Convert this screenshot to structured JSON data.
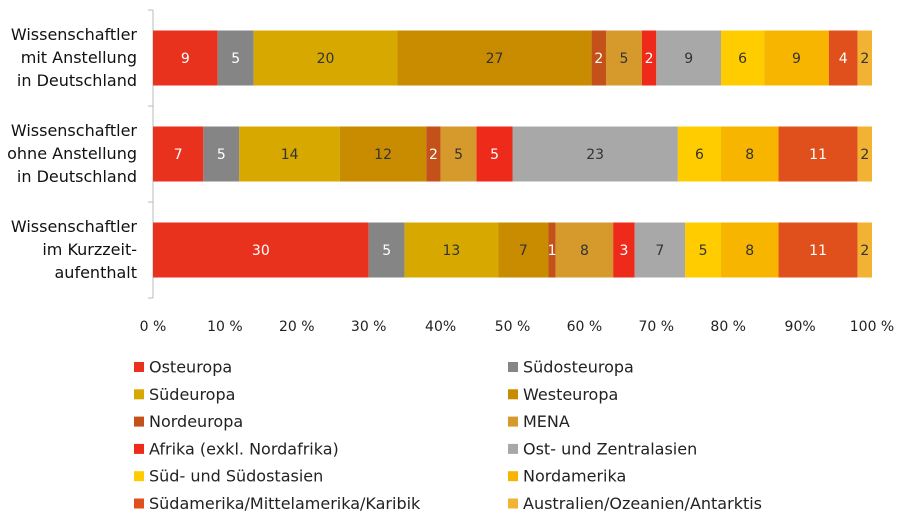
{
  "chart_data": {
    "type": "stacked_barh",
    "categories": [
      "Wissenschaftler\nmit Anstellung\nin Deutschland",
      "Wissenschaftler\nohne Anstellung\nin Deutschland",
      "Wissenschaftler\nim Kurzzeit-\naufenthalt"
    ],
    "series": [
      {
        "name": "Osteuropa",
        "color": "#e8321e",
        "label_color": "#ffffff",
        "values": [
          9,
          7,
          30
        ]
      },
      {
        "name": "Südosteuropa",
        "color": "#858585",
        "label_color": "#ffffff",
        "values": [
          5,
          5,
          5
        ]
      },
      {
        "name": "Südeuropa",
        "color": "#d6a800",
        "label_color": "#333333",
        "values": [
          20,
          14,
          13
        ]
      },
      {
        "name": "Westeuropa",
        "color": "#c98c00",
        "label_color": "#333333",
        "values": [
          27,
          12,
          7
        ]
      },
      {
        "name": "Nordeuropa",
        "color": "#c4501a",
        "label_color": "#ffffff",
        "values": [
          2,
          2,
          1
        ]
      },
      {
        "name": "MENA",
        "color": "#d69a2c",
        "label_color": "#333333",
        "values": [
          5,
          5,
          8
        ]
      },
      {
        "name": "Afrika (exkl. Nordafrika)",
        "color": "#ee2a1a",
        "label_color": "#ffffff",
        "values": [
          2,
          5,
          3
        ]
      },
      {
        "name": "Ost- und Zentralasien",
        "color": "#a8a8a8",
        "label_color": "#333333",
        "values": [
          9,
          23,
          7
        ]
      },
      {
        "name": "Süd- und Südostasien",
        "color": "#ffcc00",
        "label_color": "#333333",
        "values": [
          6,
          6,
          5
        ]
      },
      {
        "name": "Nordamerika",
        "color": "#f7b500",
        "label_color": "#333333",
        "values": [
          9,
          8,
          8
        ]
      },
      {
        "name": "Südamerika/Mittelamerika/Karibik",
        "color": "#e0501c",
        "label_color": "#ffffff",
        "values": [
          4,
          11,
          11
        ]
      },
      {
        "name": "Australien/Ozeanien/Antarktis",
        "color": "#f2b234",
        "label_color": "#333333",
        "values": [
          2,
          2,
          2
        ]
      }
    ],
    "xlim": [
      0,
      100
    ],
    "xticks": [
      {
        "value": 0,
        "label": "0 %"
      },
      {
        "value": 10,
        "label": "10 %"
      },
      {
        "value": 20,
        "label": "20 %"
      },
      {
        "value": 30,
        "label": "30 %"
      },
      {
        "value": 40,
        "label": "40%"
      },
      {
        "value": 50,
        "label": "50 %"
      },
      {
        "value": 60,
        "label": "60 %"
      },
      {
        "value": 70,
        "label": "70 %"
      },
      {
        "value": 80,
        "label": "80 %"
      },
      {
        "value": 90,
        "label": "90%"
      },
      {
        "value": 100,
        "label": "100 %"
      }
    ],
    "grid": false
  }
}
